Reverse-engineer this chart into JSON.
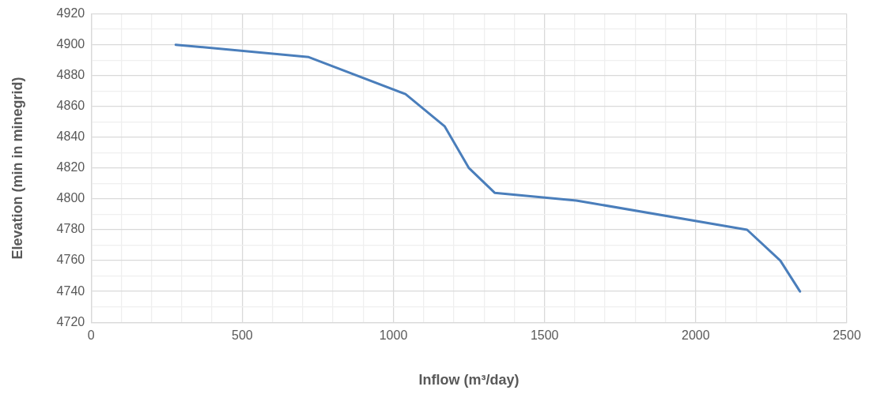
{
  "chart_data": {
    "type": "line",
    "xlabel": "Inflow (m³/day)",
    "ylabel": "Elevation (min in minegrid)",
    "series": [
      {
        "color": "#4a7ebb",
        "x": [
          280,
          720,
          1040,
          1170,
          1250,
          1335,
          1605,
          2170,
          2280,
          2345
        ],
        "values": [
          4900,
          4892,
          4868,
          4847,
          4820,
          4804,
          4799,
          4780,
          4760,
          4740
        ]
      }
    ],
    "xlim": [
      0,
      2500
    ],
    "xticks": [
      0,
      {
        "value": 100,
        "label": null
      },
      {
        "value": 200,
        "label": null
      },
      {
        "value": 300,
        "label": null
      },
      {
        "value": 400,
        "label": null
      },
      500,
      {
        "value": 600,
        "label": null
      },
      {
        "value": 700,
        "label": null
      },
      {
        "value": 800,
        "label": null
      },
      {
        "value": 900,
        "label": null
      },
      1000,
      {
        "value": 1100,
        "label": null
      },
      {
        "value": 1200,
        "label": null
      },
      {
        "value": 1300,
        "label": null
      },
      {
        "value": 1400,
        "label": null
      },
      1500,
      {
        "value": 1600,
        "label": null
      },
      {
        "value": 1700,
        "label": null
      },
      {
        "value": 1800,
        "label": null
      },
      {
        "value": 1900,
        "label": null
      },
      2000,
      {
        "value": 2100,
        "label": null
      },
      {
        "value": 2200,
        "label": null
      },
      {
        "value": 2300,
        "label": null
      },
      {
        "value": 2400,
        "label": null
      },
      2500
    ],
    "ylim": [
      4720,
      4920
    ],
    "yticks": [
      4720,
      {
        "value": 4730,
        "label": null
      },
      4740,
      {
        "value": 4750,
        "label": null
      },
      4760,
      {
        "value": 4770,
        "label": null
      },
      4780,
      {
        "value": 4790,
        "label": null
      },
      4800,
      {
        "value": 4810,
        "label": null
      },
      4820,
      {
        "value": 4830,
        "label": null
      },
      4840,
      {
        "value": 4850,
        "label": null
      },
      4860,
      {
        "value": 4870,
        "label": null
      },
      4880,
      {
        "value": 4890,
        "label": null
      },
      4900,
      {
        "value": 4910,
        "label": null
      },
      4920
    ],
    "grid": true,
    "legend": false,
    "marker": "none",
    "line_style": "solid"
  }
}
